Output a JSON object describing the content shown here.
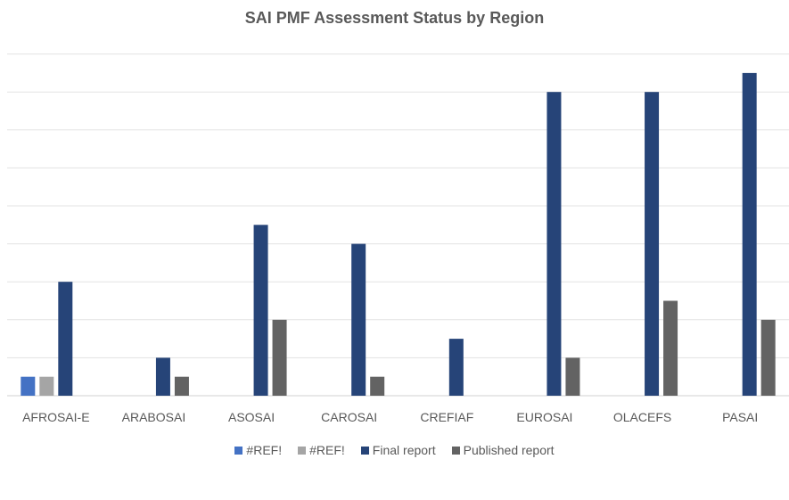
{
  "chart_data": {
    "type": "bar",
    "title": "SAI PMF Assessment Status by Region",
    "categories": [
      "AFROSAI-E",
      "ARABOSAI",
      "ASOSAI",
      "CAROSAI",
      "CREFIAF",
      "EUROSAI",
      "OLACEFS",
      "PASAI"
    ],
    "series": [
      {
        "name": "#REF!",
        "color": "#4472c4",
        "values": [
          1,
          0,
          0,
          0,
          0,
          0,
          0,
          0
        ]
      },
      {
        "name": "#REF!",
        "color": "#a5a5a5",
        "values": [
          1,
          0,
          0,
          0,
          0,
          0,
          0,
          0
        ]
      },
      {
        "name": "Final report",
        "color": "#264478",
        "values": [
          6,
          2,
          9,
          8,
          3,
          16,
          16,
          17
        ]
      },
      {
        "name": "Published report",
        "color": "#636363",
        "values": [
          0,
          1,
          4,
          1,
          0,
          2,
          5,
          4
        ]
      }
    ],
    "ylim": [
      0,
      18
    ],
    "grid": true,
    "legend_position": "bottom"
  }
}
